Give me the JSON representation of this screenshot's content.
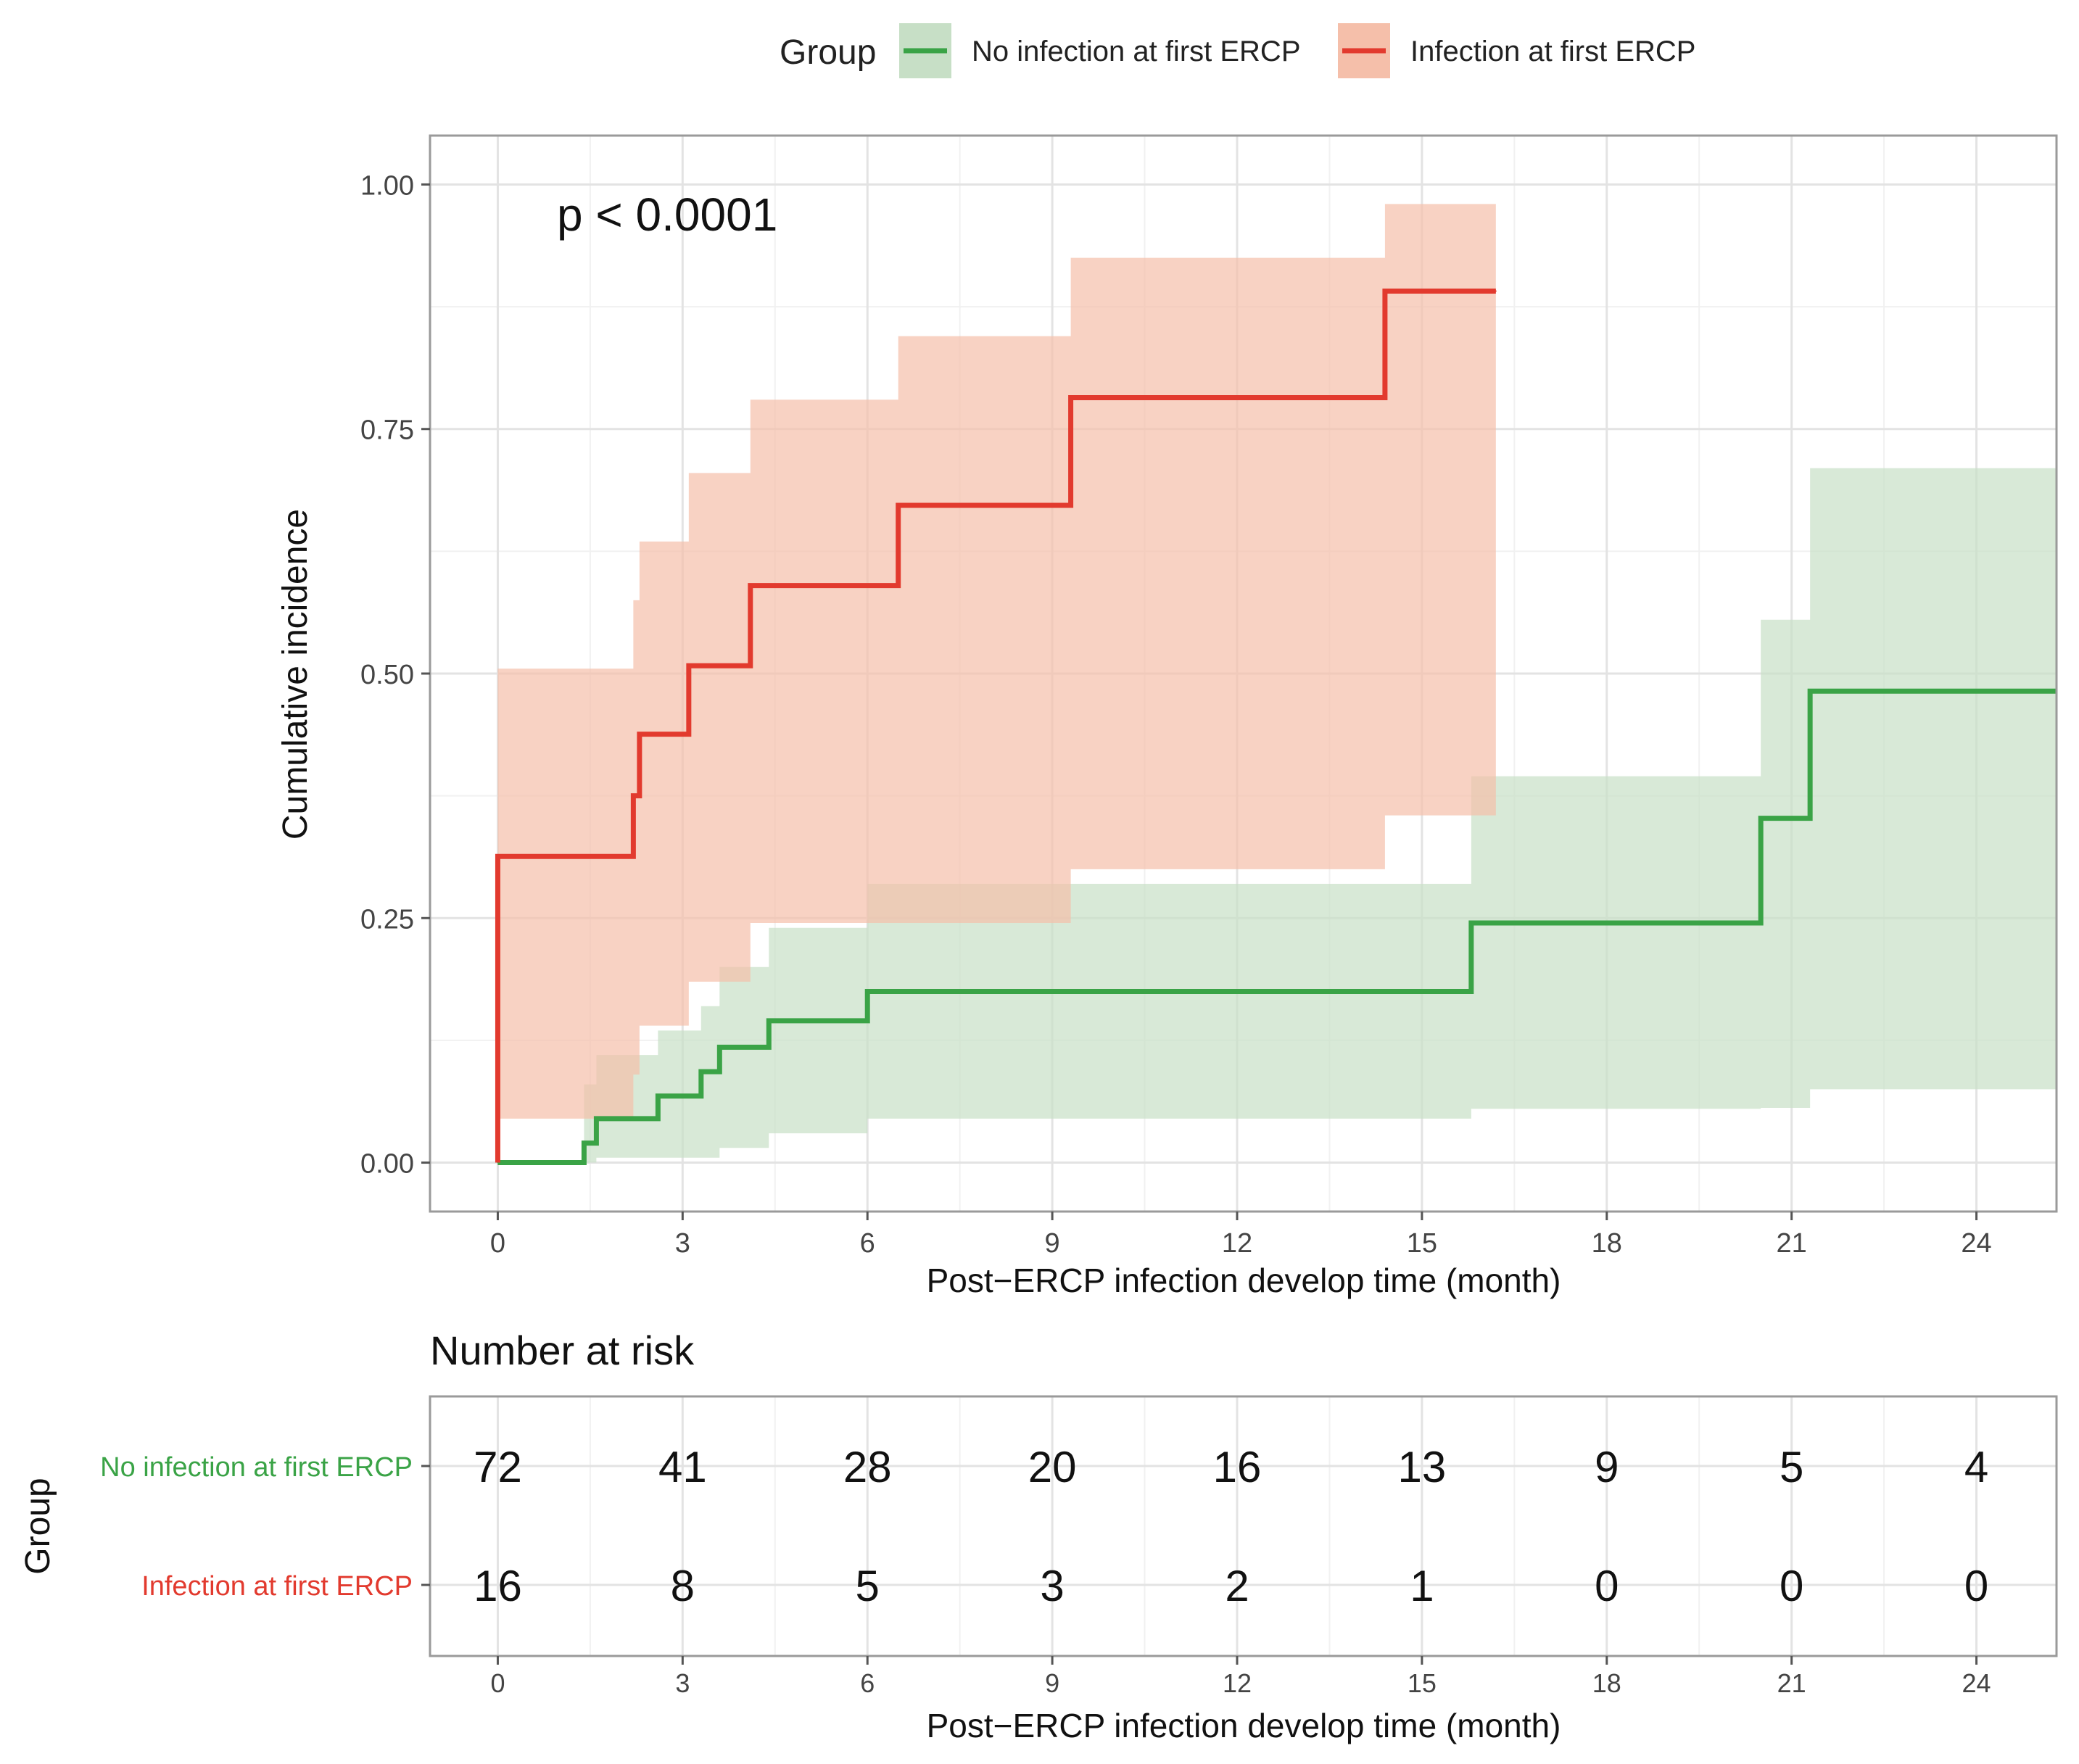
{
  "legend": {
    "title": "Group",
    "items": [
      {
        "label": "No infection at first ERCP",
        "line_color": "#3aa346",
        "fill_color": "#c7dfc6"
      },
      {
        "label": "Infection at first ERCP",
        "line_color": "#e23a2e",
        "fill_color": "#f5bfaa"
      }
    ]
  },
  "chart_data": [
    {
      "type": "line",
      "subtype": "step",
      "title": "",
      "annotation": "p < 0.0001",
      "xlabel": "Post−ERCP infection develop time (month)",
      "ylabel": "Cumulative incidence",
      "xlim": [
        -1.1,
        25.3
      ],
      "ylim": [
        -0.05,
        1.05
      ],
      "xticks": [
        0,
        3,
        6,
        9,
        12,
        15,
        18,
        21,
        24
      ],
      "yticks": [
        0,
        0.25,
        0.5,
        0.75,
        1.0
      ],
      "ytick_labels": [
        "0.00",
        "0.25",
        "0.50",
        "0.75",
        "1.00"
      ],
      "grid": true,
      "legend_position": "top",
      "series": [
        {
          "name": "No infection at first ERCP",
          "color": "#3aa346",
          "band_color": "#c7dfc6",
          "x": [
            0,
            1.4,
            1.6,
            2.6,
            3.3,
            3.6,
            4.4,
            6.0,
            15.8,
            20.5,
            21.3,
            25.3
          ],
          "y": [
            0,
            0.02,
            0.045,
            0.068,
            0.093,
            0.118,
            0.145,
            0.175,
            0.245,
            0.352,
            0.482,
            0.482
          ],
          "lower": [
            0,
            0,
            0.005,
            0.005,
            0.005,
            0.015,
            0.03,
            0.045,
            0.055,
            0.056,
            0.075,
            0.075
          ],
          "upper": [
            0,
            0.08,
            0.11,
            0.135,
            0.16,
            0.2,
            0.24,
            0.285,
            0.395,
            0.555,
            0.71,
            0.71
          ]
        },
        {
          "name": "Infection at first ERCP",
          "color": "#e23a2e",
          "band_color": "#f5bfaa",
          "x": [
            0,
            2.2,
            2.3,
            3.1,
            4.1,
            6.5,
            9.3,
            14.4,
            16.2
          ],
          "y": [
            0.313,
            0.375,
            0.438,
            0.508,
            0.59,
            0.672,
            0.782,
            0.891,
            0.891
          ],
          "lower": [
            0.045,
            0.09,
            0.14,
            0.185,
            0.245,
            0.245,
            0.3,
            0.355,
            0.355
          ],
          "upper": [
            0.505,
            0.575,
            0.635,
            0.705,
            0.78,
            0.845,
            0.925,
            0.98,
            0.98
          ]
        }
      ]
    },
    {
      "type": "table",
      "title": "Number at risk",
      "xlabel": "Post−ERCP infection develop time (month)",
      "ylabel": "Group",
      "xticks": [
        0,
        3,
        6,
        9,
        12,
        15,
        18,
        21,
        24
      ],
      "rows": [
        {
          "group": "No infection at first ERCP",
          "color": "#3aa346",
          "values": [
            72,
            41,
            28,
            20,
            16,
            13,
            9,
            5,
            4
          ]
        },
        {
          "group": "Infection at first ERCP",
          "color": "#e23a2e",
          "values": [
            16,
            8,
            5,
            3,
            2,
            1,
            0,
            0,
            0
          ]
        }
      ]
    }
  ]
}
